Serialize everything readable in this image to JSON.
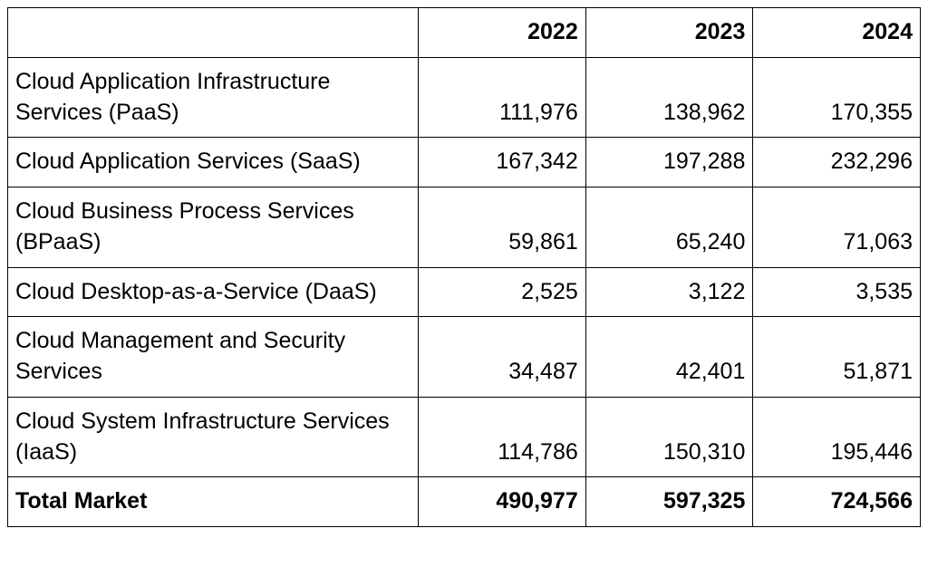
{
  "table": {
    "type": "table",
    "background_color": "#ffffff",
    "border_color": "#000000",
    "text_color": "#000000",
    "header_fontweight": 700,
    "body_fontweight": 400,
    "total_fontweight": 700,
    "fontsize_pt": 19,
    "font_family": "sans-serif",
    "column_widths_pct": [
      45,
      18.333,
      18.333,
      18.333
    ],
    "alignments": [
      "left",
      "right",
      "right",
      "right"
    ],
    "columns": [
      "",
      "2022",
      "2023",
      "2024"
    ],
    "rows": [
      {
        "label": "Cloud Application Infrastructure Services (PaaS)",
        "values": [
          "111,976",
          "138,962",
          "170,355"
        ]
      },
      {
        "label": "Cloud Application Services (SaaS)",
        "values": [
          "167,342",
          "197,288",
          "232,296"
        ]
      },
      {
        "label": "Cloud Business Process Services (BPaaS)",
        "values": [
          "59,861",
          "65,240",
          "71,063"
        ]
      },
      {
        "label": "Cloud Desktop-as-a-Service (DaaS)",
        "values": [
          "2,525",
          "3,122",
          "3,535"
        ]
      },
      {
        "label": "Cloud Management and Security Services",
        "values": [
          "34,487",
          "42,401",
          "51,871"
        ]
      },
      {
        "label": "Cloud System Infrastructure Services (IaaS)",
        "values": [
          "114,786",
          "150,310",
          "195,446"
        ]
      }
    ],
    "total_row": {
      "label": "Total Market",
      "values": [
        "490,977",
        "597,325",
        "724,566"
      ]
    }
  }
}
